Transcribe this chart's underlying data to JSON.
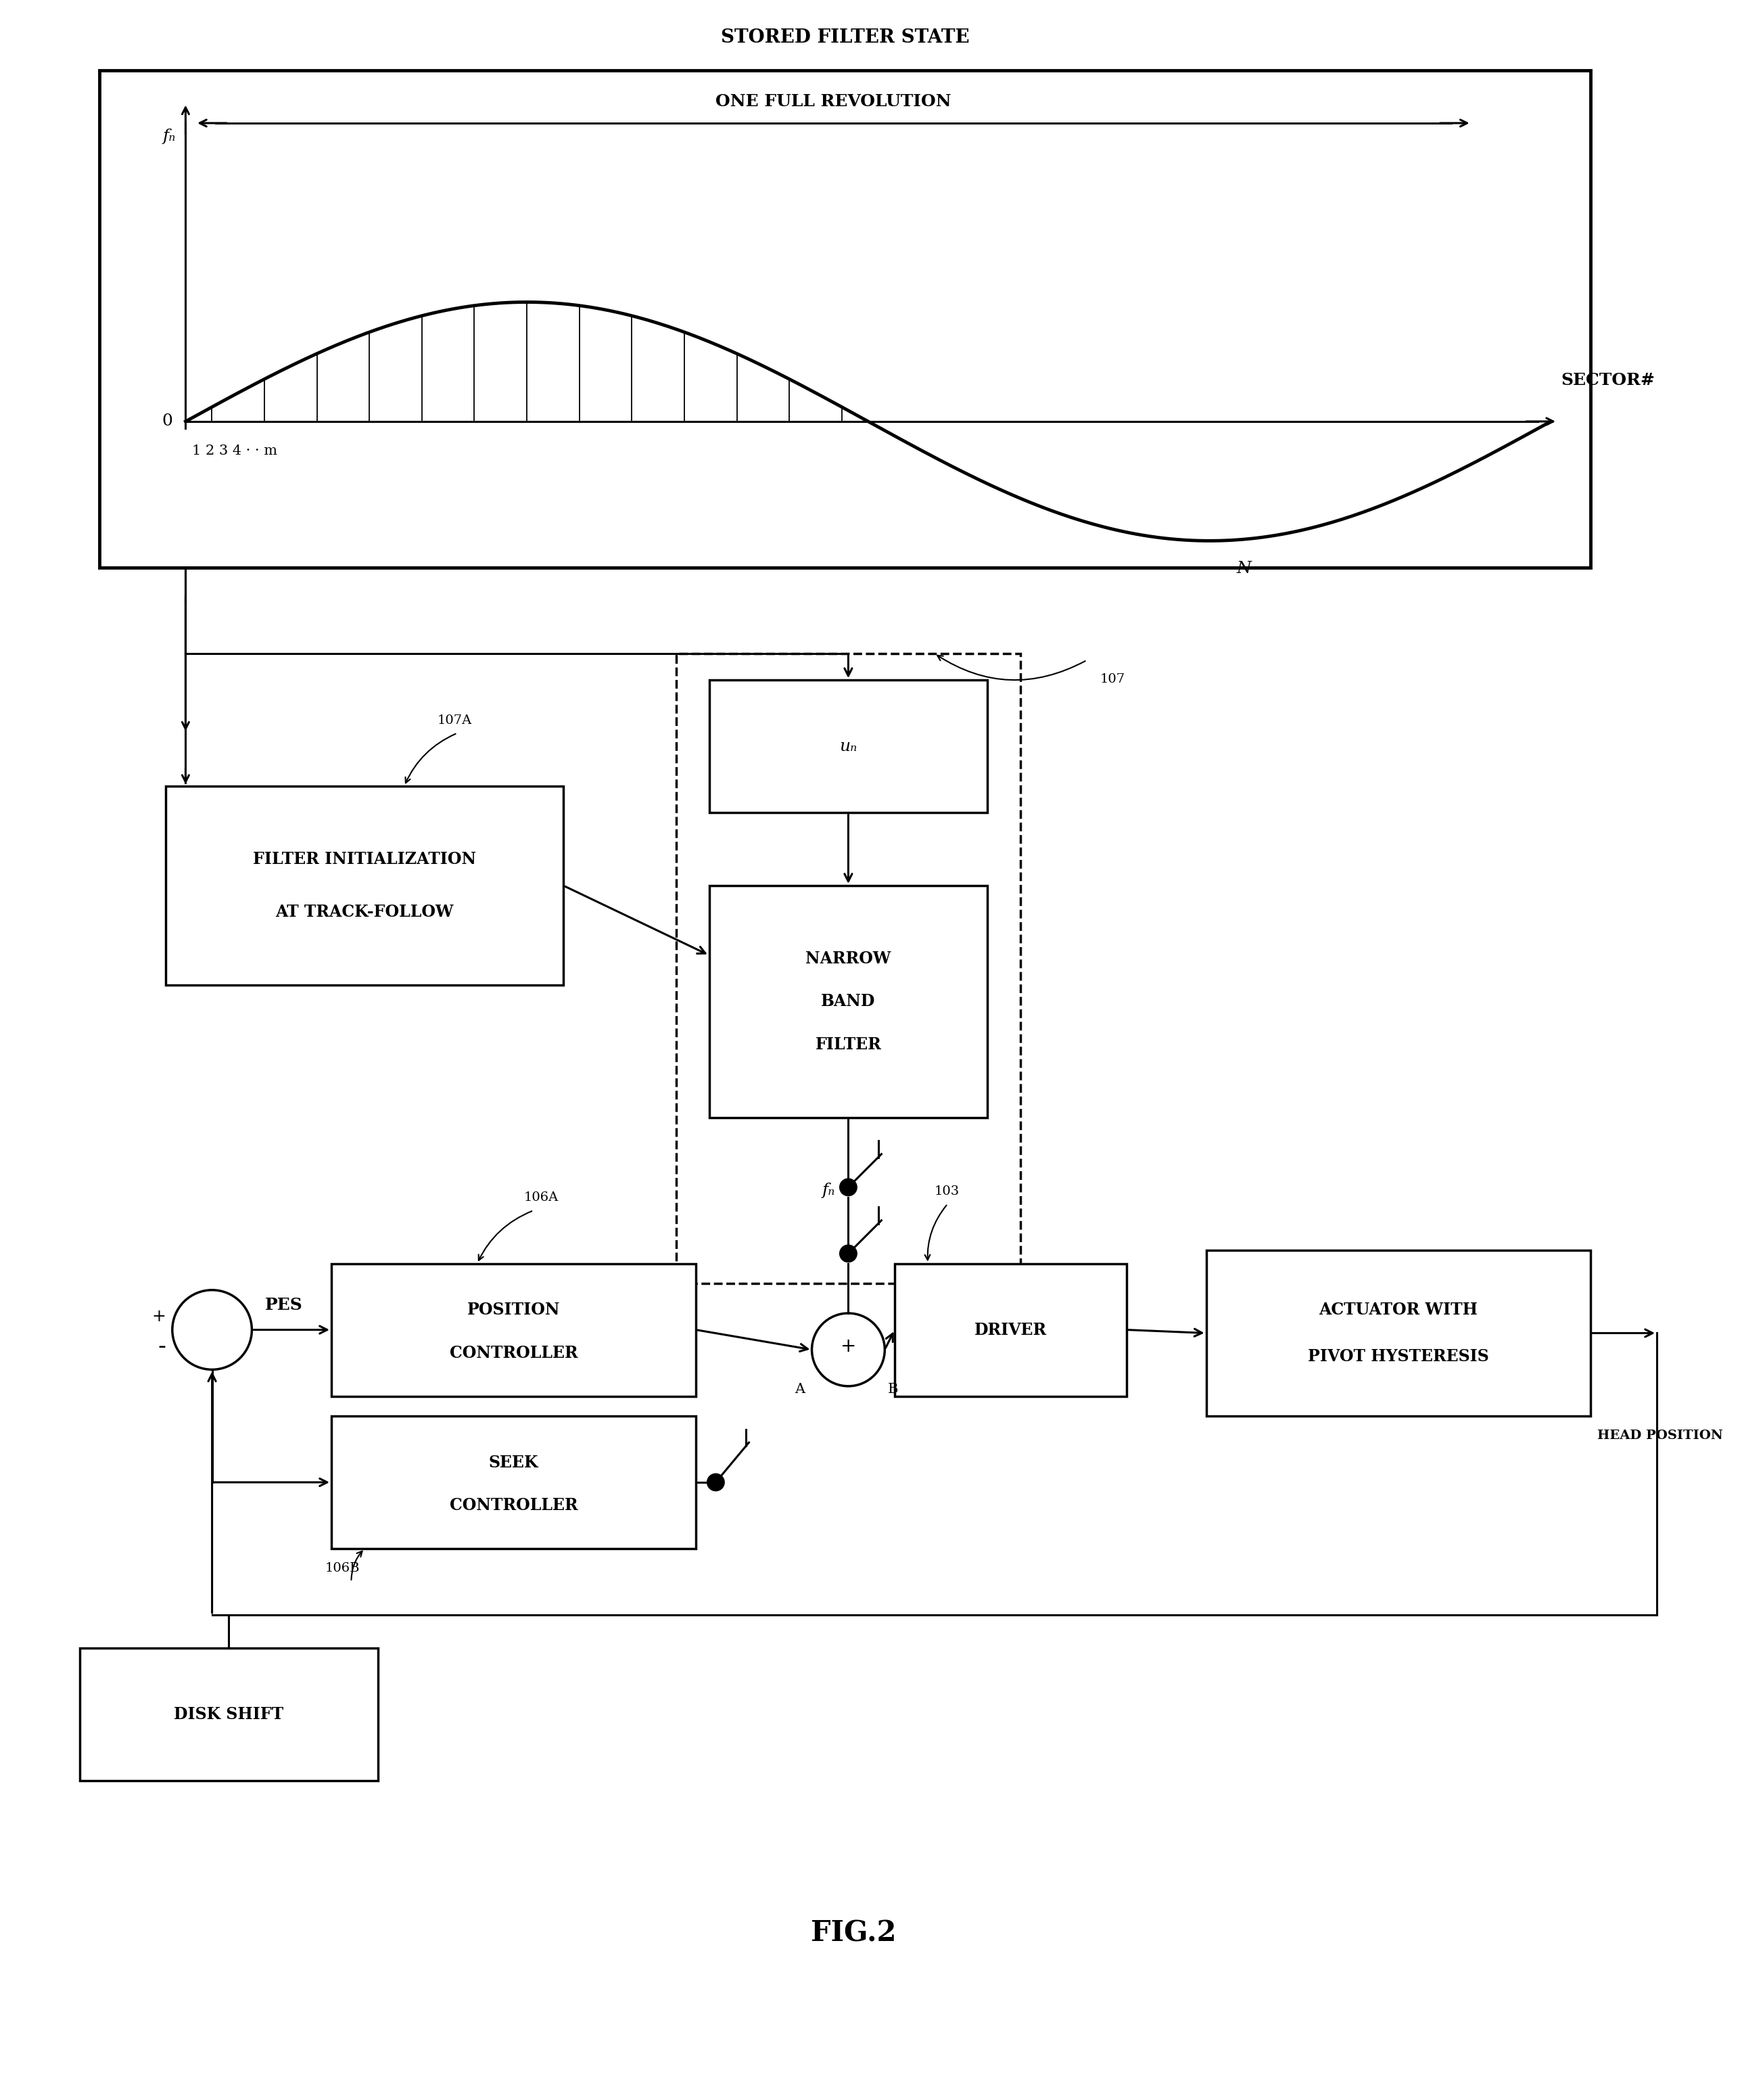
{
  "title": "FIG.2",
  "stored_filter_state_label": "STORED FILTER STATE",
  "one_full_revolution_label": "ONE FULL REVOLUTION",
  "sector_label": "SECTOR#",
  "fn_label": "fₙ",
  "zero_label": "0",
  "sector_ticks": "1 2 3 4 · · m",
  "N_label": "N",
  "box107_label1": "NARROW",
  "box107_label2": "BAND",
  "box107_label3": "FILTER",
  "box107A_label1": "FILTER INITIALIZATION",
  "box107A_label2": "AT TRACK-FOLLOW",
  "box106A_label1": "POSITION",
  "box106A_label2": "CONTROLLER",
  "box106B_label1": "SEEK",
  "box106B_label2": "CONTROLLER",
  "box103_label1": "DRIVER",
  "box104_label1": "ACTUATOR WITH",
  "box104_label2": "PIVOT HYSTERESIS",
  "disk_shift_label": "DISK SHIFT",
  "head_position_label": "HEAD POSITION",
  "un_label": "uₙ",
  "fn_bottom_label": "fₙ",
  "A_label": "A",
  "B_label": "B",
  "PES_label": "PES",
  "label_107": "107",
  "label_107A": "107A",
  "label_106A": "106A",
  "label_106B": "106B",
  "label_103": "103",
  "bg_color": "#ffffff",
  "line_color": "#000000"
}
